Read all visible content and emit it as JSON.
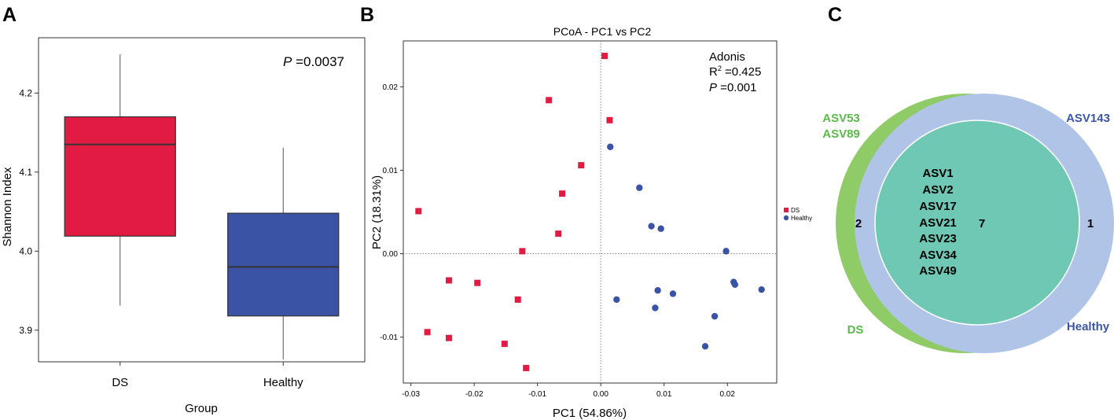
{
  "colors": {
    "ds_red": "#e21b42",
    "healthy_blue": "#3a53a4",
    "venn_green": "#8fcb66",
    "venn_blue": "#b0c4e8",
    "venn_overlap": "#6ec8b4",
    "green_text": "#5cb84a",
    "blue_text": "#3b56a6",
    "axis": "#333333"
  },
  "panels": {
    "a": {
      "letter": "A",
      "pvalue_prefix": "P",
      "pvalue_value": " =0.0037"
    },
    "b": {
      "letter": "B",
      "stats_title": "Adonis",
      "r2_prefix": "R",
      "r2_sup": "2",
      "r2_value": " =0.425",
      "p_prefix": "P",
      "p_value": " =0.001",
      "legend_ds": "DS",
      "legend_healthy": "Healthy"
    },
    "c": {
      "letter": "C",
      "ds_unique_labels": [
        "ASV53",
        "ASV89"
      ],
      "healthy_unique_labels": [
        "ASV143"
      ],
      "shared_labels": [
        "ASV1",
        "ASV2",
        "ASV17",
        "ASV21",
        "ASV23",
        "ASV34",
        "ASV49"
      ],
      "ds_only_count": "2",
      "shared_count": "7",
      "healthy_only_count": "1",
      "ds_set_label": "DS",
      "healthy_set_label": "Healthy"
    }
  },
  "chart_data": [
    {
      "type": "box",
      "title": "",
      "xlabel": "Group",
      "ylabel": "Shannon Index",
      "ylim": [
        3.86,
        4.27
      ],
      "yticks": [
        3.9,
        4.0,
        4.1,
        4.2
      ],
      "categories": [
        "DS",
        "Healthy"
      ],
      "boxes": [
        {
          "name": "DS",
          "whisker_low": 3.931,
          "q1": 4.019,
          "median": 4.135,
          "q3": 4.17,
          "whisker_high": 4.249
        },
        {
          "name": "Healthy",
          "whisker_low": 3.863,
          "q1": 3.918,
          "median": 3.98,
          "q3": 4.048,
          "whisker_high": 4.131
        }
      ],
      "annotation": "P =0.0037"
    },
    {
      "type": "scatter",
      "title": "PCoA - PC1 vs PC2",
      "xlabel": "PC1 (54.86%)",
      "ylabel": "PC2 (18.31%)",
      "xlim": [
        -0.0312,
        0.0278
      ],
      "ylim": [
        -0.0155,
        0.0255
      ],
      "xticks": [
        -0.03,
        -0.02,
        -0.01,
        0.0,
        0.01,
        0.02
      ],
      "yticks": [
        -0.01,
        0.0,
        0.01,
        0.02
      ],
      "reference_lines": {
        "x": 0,
        "y": 0
      },
      "legend": "right",
      "series": [
        {
          "name": "DS",
          "marker": "square",
          "points": [
            [
              0.0006,
              0.0237
            ],
            [
              -0.0082,
              0.0184
            ],
            [
              0.0014,
              0.016
            ],
            [
              -0.0031,
              0.0106
            ],
            [
              -0.0061,
              0.0072
            ],
            [
              -0.0288,
              0.0051
            ],
            [
              -0.0067,
              0.0024
            ],
            [
              -0.0124,
              0.0003
            ],
            [
              -0.024,
              -0.0032
            ],
            [
              -0.0195,
              -0.0035
            ],
            [
              -0.0131,
              -0.0055
            ],
            [
              -0.0274,
              -0.0094
            ],
            [
              -0.024,
              -0.0101
            ],
            [
              -0.0152,
              -0.0108
            ],
            [
              -0.0118,
              -0.0137
            ]
          ]
        },
        {
          "name": "Healthy",
          "marker": "circle",
          "points": [
            [
              0.0015,
              0.0128
            ],
            [
              0.0061,
              0.0079
            ],
            [
              0.008,
              0.0033
            ],
            [
              0.0095,
              0.003
            ],
            [
              0.0198,
              0.0003
            ],
            [
              0.021,
              -0.0034
            ],
            [
              0.0212,
              -0.0037
            ],
            [
              0.0025,
              -0.0055
            ],
            [
              0.009,
              -0.0044
            ],
            [
              0.0114,
              -0.0048
            ],
            [
              0.0254,
              -0.0043
            ],
            [
              0.0086,
              -0.0065
            ],
            [
              0.018,
              -0.0075
            ],
            [
              0.0165,
              -0.0111
            ]
          ]
        }
      ]
    }
  ]
}
